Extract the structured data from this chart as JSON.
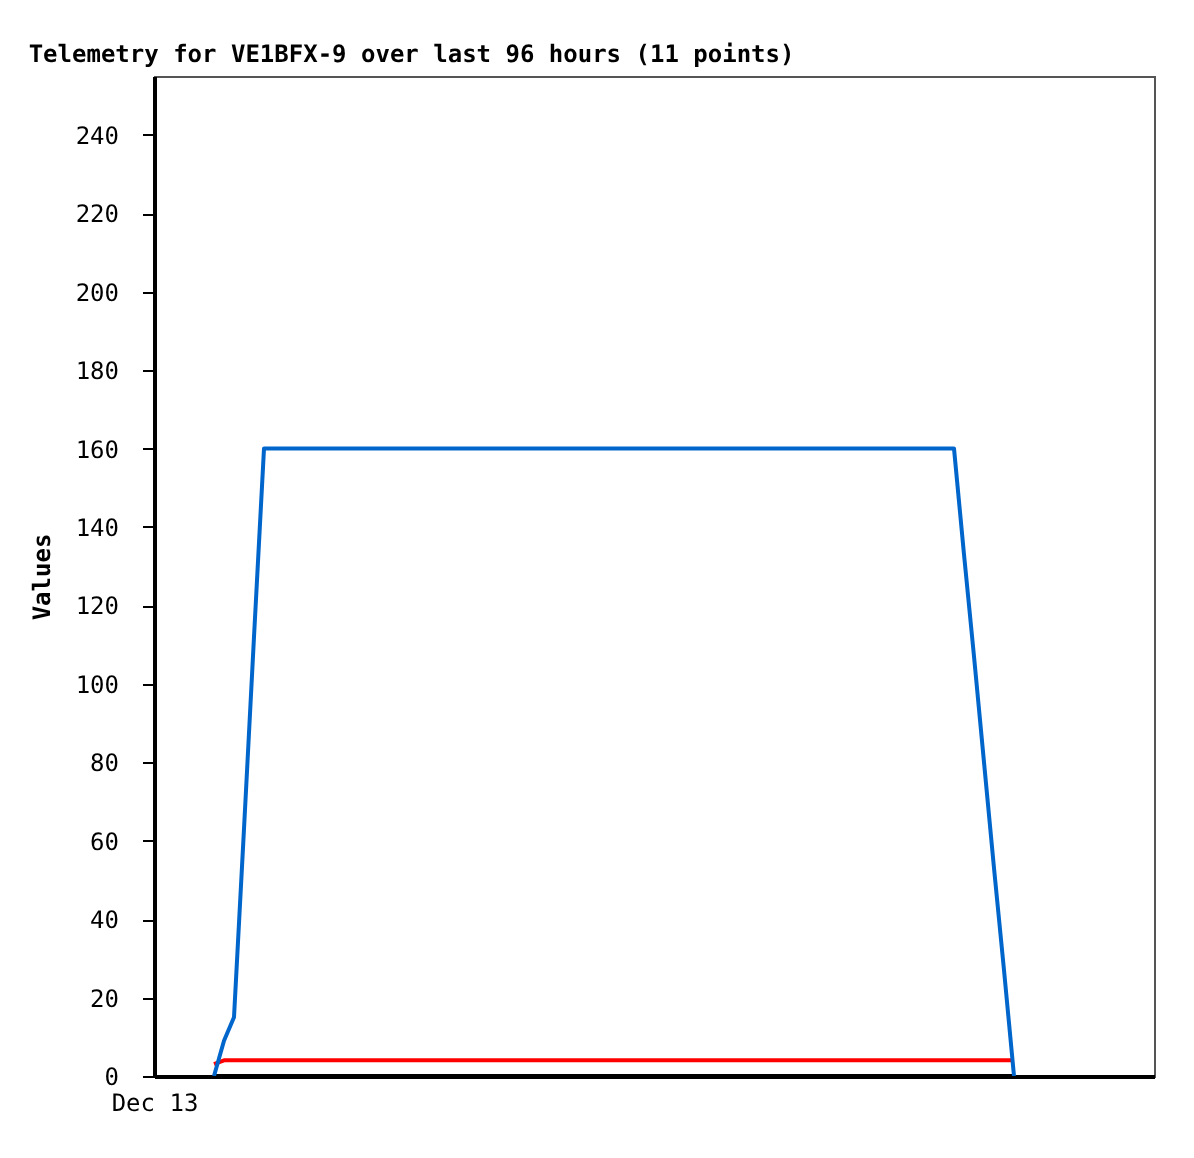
{
  "chart_data": {
    "type": "line",
    "title": "Telemetry for VE1BFX-9 over last 96 hours (11 points)",
    "ylabel": "Values",
    "annotations": [
      "Dec 13"
    ],
    "categories": [
      null,
      null,
      null,
      null,
      null,
      null,
      null,
      null,
      null,
      null,
      null,
      null,
      null,
      null,
      null,
      null,
      null,
      null,
      null,
      null,
      null,
      null,
      null,
      null,
      null,
      null,
      null,
      null,
      null,
      null,
      null,
      null,
      null,
      null,
      null,
      null,
      null,
      null,
      null,
      null,
      null,
      null,
      null,
      null,
      null,
      null,
      null,
      null,
      null,
      null,
      null,
      null,
      null,
      null,
      null,
      null,
      null,
      null,
      null,
      null,
      null,
      null,
      null,
      null,
      null,
      null,
      null,
      null,
      null,
      null,
      null,
      null,
      null,
      null,
      null,
      null,
      null,
      null,
      null,
      null,
      null,
      null,
      null,
      null,
      null,
      null,
      null,
      null,
      null,
      null,
      null,
      null,
      null,
      null,
      null,
      null,
      null,
      null,
      null,
      null,
      null
    ],
    "ylim": [
      0,
      255
    ],
    "yticks": [
      0,
      20,
      40,
      60,
      80,
      100,
      120,
      140,
      160,
      180,
      200,
      220,
      240
    ],
    "grid": false,
    "legend": false,
    "marker": "none",
    "line_style": "solid",
    "series": [
      {
        "color": "#000000",
        "values": [
          null,
          null,
          null,
          null,
          null,
          null,
          0,
          0,
          0,
          0,
          0,
          0,
          0,
          0,
          0,
          0,
          0,
          0,
          0,
          0,
          0,
          0,
          0,
          0,
          0,
          0,
          0,
          0,
          0,
          0,
          0,
          0,
          0,
          0,
          0,
          0,
          0,
          0,
          0,
          0,
          0,
          0,
          0,
          0,
          0,
          0,
          0,
          0,
          0,
          0,
          0,
          0,
          0,
          0,
          0,
          0,
          0,
          0,
          0,
          0,
          0,
          0,
          0,
          0,
          0,
          0,
          0,
          0,
          0,
          0,
          0,
          0,
          0,
          0,
          0,
          0,
          0,
          0,
          0,
          0,
          0,
          0,
          0,
          0,
          0,
          0,
          0,
          null,
          null,
          null,
          null,
          null,
          null,
          null,
          null,
          null,
          null,
          null,
          null,
          null,
          null
        ]
      },
      {
        "color": "#ff0000",
        "values": [
          null,
          null,
          null,
          null,
          null,
          null,
          3,
          4,
          4,
          4,
          4,
          4,
          4,
          4,
          4,
          4,
          4,
          4,
          4,
          4,
          4,
          4,
          4,
          4,
          4,
          4,
          4,
          4,
          4,
          4,
          4,
          4,
          4,
          4,
          4,
          4,
          4,
          4,
          4,
          4,
          4,
          4,
          4,
          4,
          4,
          4,
          4,
          4,
          4,
          4,
          4,
          4,
          4,
          4,
          4,
          4,
          4,
          4,
          4,
          4,
          4,
          4,
          4,
          4,
          4,
          4,
          4,
          4,
          4,
          4,
          4,
          4,
          4,
          4,
          4,
          4,
          4,
          4,
          4,
          4,
          4,
          4,
          4,
          4,
          4,
          4,
          4,
          null,
          null,
          null,
          null,
          null,
          null,
          null,
          null,
          null,
          null,
          null,
          null,
          null,
          null
        ]
      },
      {
        "color": "#0066cc",
        "values": [
          null,
          null,
          null,
          null,
          null,
          null,
          0,
          9,
          15,
          63,
          112,
          160,
          160,
          160,
          160,
          160,
          160,
          160,
          160,
          160,
          160,
          160,
          160,
          160,
          160,
          160,
          160,
          160,
          160,
          160,
          160,
          160,
          160,
          160,
          160,
          160,
          160,
          160,
          160,
          160,
          160,
          160,
          160,
          160,
          160,
          160,
          160,
          160,
          160,
          160,
          160,
          160,
          160,
          160,
          160,
          160,
          160,
          160,
          160,
          160,
          160,
          160,
          160,
          160,
          160,
          160,
          160,
          160,
          160,
          160,
          160,
          160,
          160,
          160,
          160,
          160,
          160,
          160,
          160,
          160,
          160,
          133,
          107,
          80,
          53,
          27,
          0,
          null,
          null,
          null,
          null,
          null,
          null,
          null,
          null,
          null,
          null,
          null,
          null,
          null,
          null
        ]
      }
    ]
  }
}
